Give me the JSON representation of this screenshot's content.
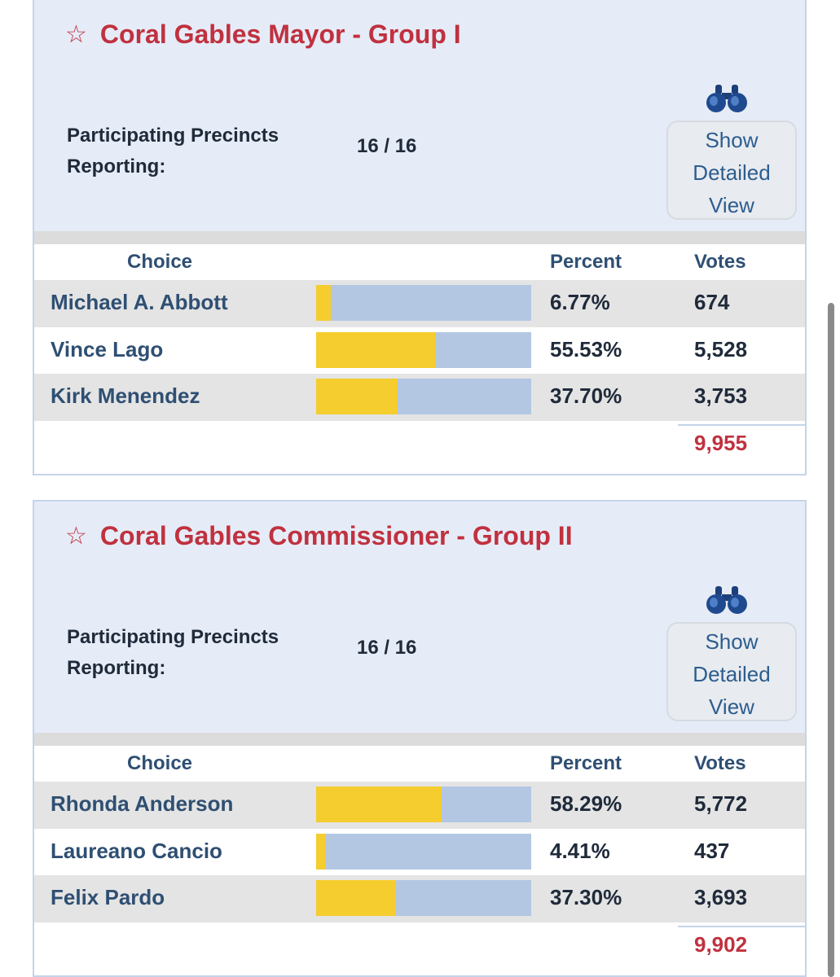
{
  "races": [
    {
      "title": "Coral Gables Mayor - Group I",
      "precincts_label_line1": "Participating Precincts",
      "precincts_label_line2": "Reporting:",
      "precincts_value": "16 / 16",
      "detail_button": [
        "Show",
        "Detailed",
        "View"
      ],
      "columns": {
        "choice": "Choice",
        "percent": "Percent",
        "votes": "Votes"
      },
      "candidates": [
        {
          "name": "Michael A. Abbott",
          "percent": "6.77%",
          "percent_value": 6.77,
          "votes": "674"
        },
        {
          "name": "Vince Lago",
          "percent": "55.53%",
          "percent_value": 55.53,
          "votes": "5,528"
        },
        {
          "name": "Kirk Menendez",
          "percent": "37.70%",
          "percent_value": 37.7,
          "votes": "3,753"
        }
      ],
      "total": "9,955"
    },
    {
      "title": "Coral Gables Commissioner - Group II",
      "precincts_label_line1": "Participating Precincts",
      "precincts_label_line2": "Reporting:",
      "precincts_value": "16 / 16",
      "detail_button": [
        "Show",
        "Detailed",
        "View"
      ],
      "columns": {
        "choice": "Choice",
        "percent": "Percent",
        "votes": "Votes"
      },
      "candidates": [
        {
          "name": "Rhonda Anderson",
          "percent": "58.29%",
          "percent_value": 58.29,
          "votes": "5,772"
        },
        {
          "name": "Laureano Cancio",
          "percent": "4.41%",
          "percent_value": 4.41,
          "votes": "437"
        },
        {
          "name": "Felix Pardo",
          "percent": "37.30%",
          "percent_value": 37.3,
          "votes": "3,693"
        }
      ],
      "total": "9,902"
    }
  ],
  "icons": {
    "star": "star-outline-icon",
    "binoculars": "binoculars-icon"
  },
  "colors": {
    "title": "#c0313f",
    "bar_fill": "#f5cd2e",
    "bar_track": "#b3c7e3",
    "header_bg": "#e6ecf7"
  }
}
